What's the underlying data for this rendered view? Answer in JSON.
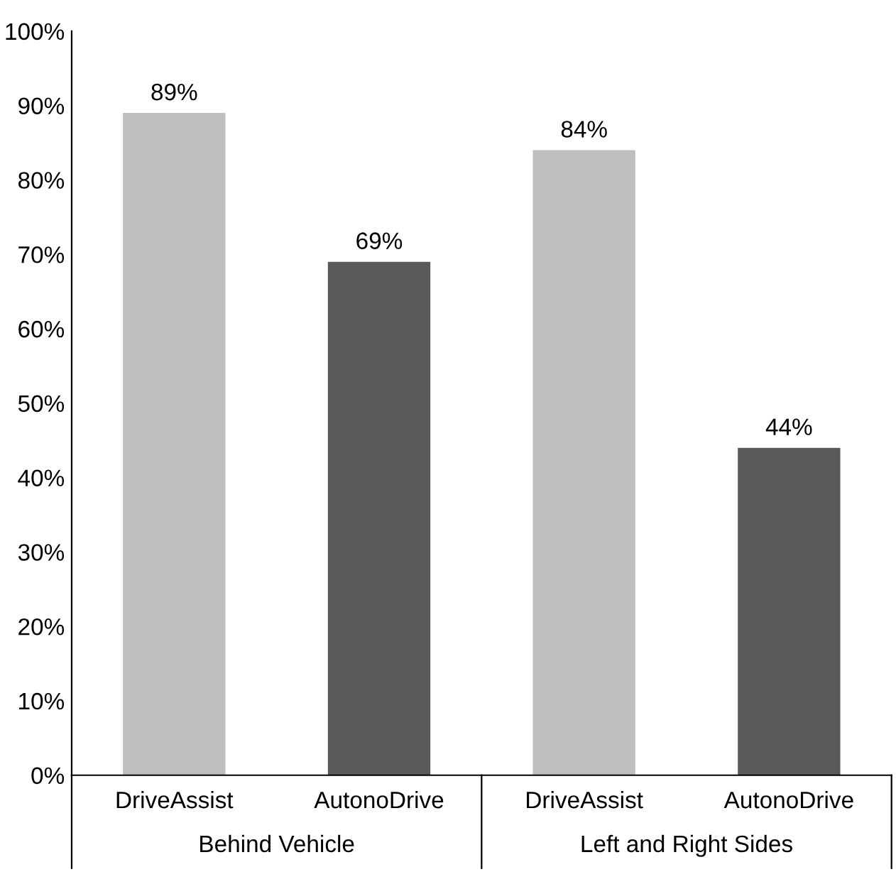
{
  "chart_data": {
    "type": "bar",
    "categories": [
      "DriveAssist",
      "AutonoDrive",
      "DriveAssist",
      "AutonoDrive"
    ],
    "values": [
      89,
      69,
      84,
      44
    ],
    "colors": [
      "#bfbfbf",
      "#595959",
      "#bfbfbf",
      "#595959"
    ],
    "value_labels": [
      "89%",
      "69%",
      "84%",
      "44%"
    ],
    "ylim": [
      0,
      100
    ],
    "yticks": [
      {
        "value": 0,
        "label": "0%"
      },
      {
        "value": 10,
        "label": "10%"
      },
      {
        "value": 20,
        "label": "20%"
      },
      {
        "value": 30,
        "label": "30%"
      },
      {
        "value": 40,
        "label": "40%"
      },
      {
        "value": 50,
        "label": "50%"
      },
      {
        "value": 60,
        "label": "60%"
      },
      {
        "value": 70,
        "label": "70%"
      },
      {
        "value": 80,
        "label": "80%"
      },
      {
        "value": 90,
        "label": "90%"
      },
      {
        "value": 100,
        "label": "100%"
      }
    ],
    "annotations": [
      "Behind Vehicle",
      "Left and Right Sides"
    ],
    "grid": false,
    "legend": false
  }
}
